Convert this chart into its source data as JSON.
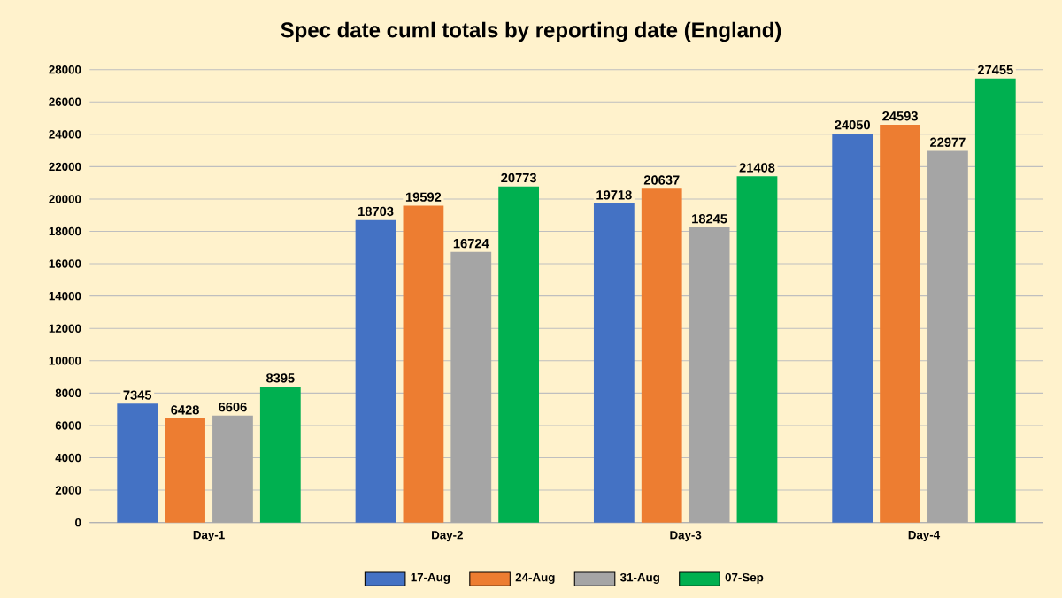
{
  "chart_data": {
    "type": "bar",
    "title": "Spec date cuml totals by reporting date (England)",
    "categories": [
      "Day-1",
      "Day-2",
      "Day-3",
      "Day-4"
    ],
    "series": [
      {
        "name": "17-Aug",
        "color": "#4472c4",
        "values": [
          7345,
          18703,
          19718,
          24050
        ]
      },
      {
        "name": "24-Aug",
        "color": "#ed7d31",
        "values": [
          6428,
          19592,
          20637,
          24593
        ]
      },
      {
        "name": "31-Aug",
        "color": "#a5a5a5",
        "values": [
          6606,
          16724,
          18245,
          22977
        ]
      },
      {
        "name": "07-Sep",
        "color": "#00b050",
        "values": [
          8395,
          20773,
          21408,
          27455
        ]
      }
    ],
    "ylim": [
      0,
      28000
    ],
    "yticks": [
      0,
      2000,
      4000,
      6000,
      8000,
      10000,
      12000,
      14000,
      16000,
      18000,
      20000,
      22000,
      24000,
      26000,
      28000
    ],
    "grid": "y",
    "legend": "bottom",
    "data_labels": true
  }
}
